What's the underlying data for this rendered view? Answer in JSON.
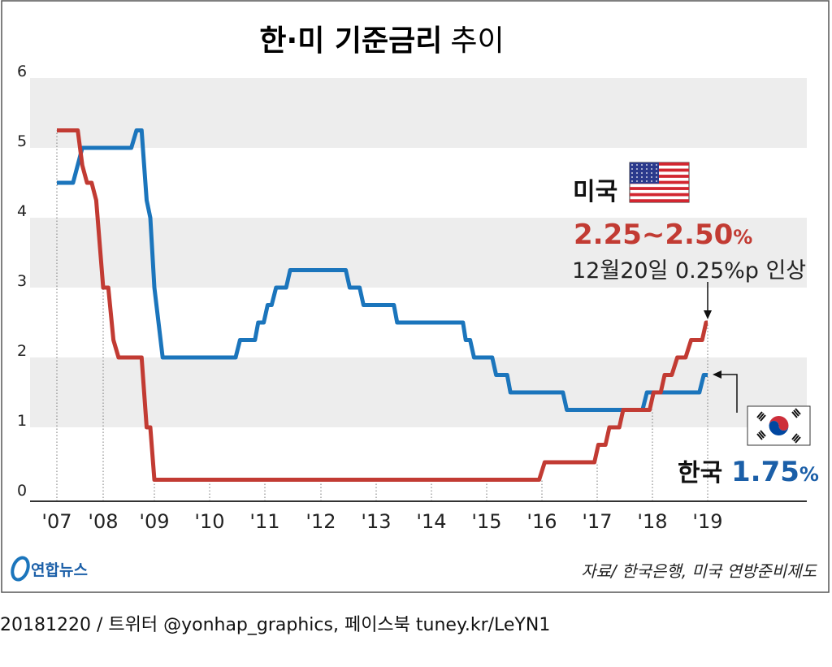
{
  "chart_data": {
    "type": "line",
    "title": "한·미 기준금리",
    "title_suffix": "추이",
    "xlabel": "",
    "ylabel": "",
    "x_ticks": [
      "'07",
      "'08",
      "'09",
      "'10",
      "'11",
      "'12",
      "'13",
      "'14",
      "'15",
      "'16",
      "'17",
      "'18",
      "'19"
    ],
    "x_tick_values": [
      2007,
      2008,
      2009,
      2010,
      2011,
      2012,
      2013,
      2014,
      2015,
      2016,
      2017,
      2018,
      2019
    ],
    "y_ticks": [
      "0",
      "1",
      "2",
      "3",
      "4",
      "5",
      "6"
    ],
    "ylim": [
      0,
      6
    ],
    "xlim": [
      2006.5,
      2020.8
    ],
    "grid": "alternating horizontal bands",
    "series": [
      {
        "key": "us",
        "color": "#c23b33",
        "points": [
          [
            2007.0,
            5.25
          ],
          [
            2007.45,
            5.25
          ],
          [
            2007.55,
            4.75
          ],
          [
            2007.65,
            4.5
          ],
          [
            2007.75,
            4.5
          ],
          [
            2007.85,
            4.25
          ],
          [
            2008.0,
            3.0
          ],
          [
            2008.1,
            3.0
          ],
          [
            2008.2,
            2.25
          ],
          [
            2008.3,
            2.0
          ],
          [
            2008.75,
            2.0
          ],
          [
            2008.85,
            1.0
          ],
          [
            2008.92,
            1.0
          ],
          [
            2009.0,
            0.25
          ],
          [
            2015.95,
            0.25
          ],
          [
            2016.05,
            0.5
          ],
          [
            2016.95,
            0.5
          ],
          [
            2017.02,
            0.75
          ],
          [
            2017.15,
            0.75
          ],
          [
            2017.22,
            1.0
          ],
          [
            2017.4,
            1.0
          ],
          [
            2017.47,
            1.25
          ],
          [
            2017.95,
            1.25
          ],
          [
            2018.02,
            1.5
          ],
          [
            2018.15,
            1.5
          ],
          [
            2018.22,
            1.75
          ],
          [
            2018.35,
            1.75
          ],
          [
            2018.45,
            2.0
          ],
          [
            2018.6,
            2.0
          ],
          [
            2018.7,
            2.25
          ],
          [
            2018.9,
            2.25
          ],
          [
            2018.97,
            2.5
          ],
          [
            2019.0,
            2.5
          ]
        ]
      },
      {
        "key": "korea",
        "color": "#1b75bc",
        "points": [
          [
            2007.0,
            4.5
          ],
          [
            2007.35,
            4.5
          ],
          [
            2007.55,
            5.0
          ],
          [
            2008.55,
            5.0
          ],
          [
            2008.65,
            5.25
          ],
          [
            2008.75,
            5.25
          ],
          [
            2008.85,
            4.25
          ],
          [
            2008.92,
            4.0
          ],
          [
            2009.0,
            3.0
          ],
          [
            2009.15,
            2.0
          ],
          [
            2010.47,
            2.0
          ],
          [
            2010.55,
            2.25
          ],
          [
            2010.82,
            2.25
          ],
          [
            2010.88,
            2.5
          ],
          [
            2010.98,
            2.5
          ],
          [
            2011.05,
            2.75
          ],
          [
            2011.12,
            2.75
          ],
          [
            2011.2,
            3.0
          ],
          [
            2011.38,
            3.0
          ],
          [
            2011.45,
            3.25
          ],
          [
            2012.45,
            3.25
          ],
          [
            2012.52,
            3.0
          ],
          [
            2012.7,
            3.0
          ],
          [
            2012.77,
            2.75
          ],
          [
            2013.32,
            2.75
          ],
          [
            2013.38,
            2.5
          ],
          [
            2014.57,
            2.5
          ],
          [
            2014.62,
            2.25
          ],
          [
            2014.7,
            2.25
          ],
          [
            2014.77,
            2.0
          ],
          [
            2015.1,
            2.0
          ],
          [
            2015.17,
            1.75
          ],
          [
            2015.37,
            1.75
          ],
          [
            2015.43,
            1.5
          ],
          [
            2016.38,
            1.5
          ],
          [
            2016.45,
            1.25
          ],
          [
            2017.82,
            1.25
          ],
          [
            2017.9,
            1.5
          ],
          [
            2018.85,
            1.5
          ],
          [
            2018.93,
            1.75
          ],
          [
            2019.0,
            1.75
          ]
        ]
      }
    ],
    "annotations": {
      "us_label": "미국",
      "us_rate": "2.25~2.50",
      "us_rate_unit": "%",
      "us_note": "12월20일 0.25%p 인상",
      "korea_label": "한국",
      "korea_rate": "1.75",
      "korea_rate_unit": "%"
    }
  },
  "footer": {
    "logo": "연합뉴스",
    "source": "자료/ 한국은행, 미국 연방준비제도",
    "credit": "20181220 / 트위터 @yonhap_graphics, 페이스북 tuney.kr/LeYN1"
  },
  "icons": {
    "us_flag": "us-flag-icon",
    "korea_flag": "korea-flag-icon",
    "logo": "yonhap-logo-icon"
  }
}
